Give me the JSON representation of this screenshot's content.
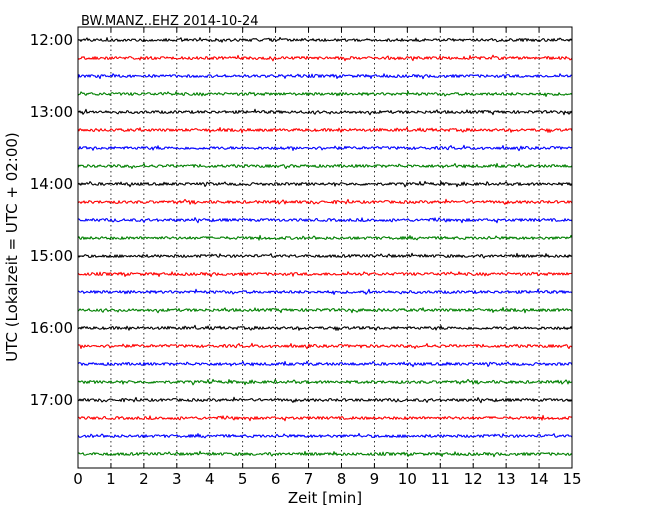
{
  "chart_data": {
    "type": "line",
    "title": "BW.MANZ..EHZ 2014-10-24",
    "xlabel": "Zeit  [min]",
    "ylabel": "UTC (Lokalzeit = UTC + 02:00)",
    "xlim": [
      0,
      15
    ],
    "x_ticks": [
      "0",
      "1",
      "2",
      "3",
      "4",
      "5",
      "6",
      "7",
      "8",
      "9",
      "10",
      "11",
      "12",
      "13",
      "14",
      "15"
    ],
    "y_tick_labels": [
      "12:00",
      "13:00",
      "14:00",
      "15:00",
      "16:00",
      "17:00"
    ],
    "grid": "vertical-dotted",
    "trace_colors": [
      "#000000",
      "#ff0000",
      "#0000ff",
      "#008000"
    ],
    "traces": [
      {
        "start": "12:00",
        "color": "#000000"
      },
      {
        "start": "12:15",
        "color": "#ff0000"
      },
      {
        "start": "12:30",
        "color": "#0000ff"
      },
      {
        "start": "12:45",
        "color": "#008000"
      },
      {
        "start": "13:00",
        "color": "#000000"
      },
      {
        "start": "13:15",
        "color": "#ff0000"
      },
      {
        "start": "13:30",
        "color": "#0000ff"
      },
      {
        "start": "13:45",
        "color": "#008000"
      },
      {
        "start": "14:00",
        "color": "#000000"
      },
      {
        "start": "14:15",
        "color": "#ff0000"
      },
      {
        "start": "14:30",
        "color": "#0000ff"
      },
      {
        "start": "14:45",
        "color": "#008000"
      },
      {
        "start": "15:00",
        "color": "#000000"
      },
      {
        "start": "15:15",
        "color": "#ff0000"
      },
      {
        "start": "15:30",
        "color": "#0000ff"
      },
      {
        "start": "15:45",
        "color": "#008000"
      },
      {
        "start": "16:00",
        "color": "#000000"
      },
      {
        "start": "16:15",
        "color": "#ff0000"
      },
      {
        "start": "16:30",
        "color": "#0000ff"
      },
      {
        "start": "16:45",
        "color": "#008000"
      },
      {
        "start": "17:00",
        "color": "#000000"
      },
      {
        "start": "17:15",
        "color": "#ff0000"
      },
      {
        "start": "17:30",
        "color": "#0000ff"
      },
      {
        "start": "17:45",
        "color": "#008000"
      }
    ]
  }
}
